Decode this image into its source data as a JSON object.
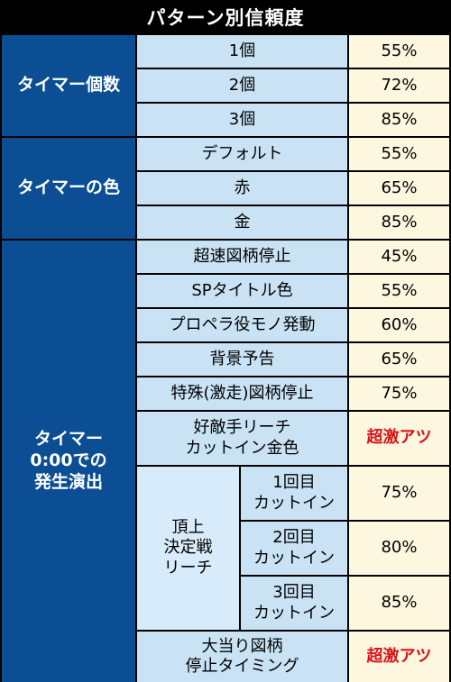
{
  "title": "パターン別信頼度",
  "colors": {
    "category_bg": "#0b4e93",
    "sub_bg": "#c9e3f5",
    "value_bg": "#fdf7df",
    "highlight_text": "#d8141a"
  },
  "sections": [
    {
      "category": "タイマー個数",
      "rows": [
        {
          "label": "1個",
          "value": "55%"
        },
        {
          "label": "2個",
          "value": "72%"
        },
        {
          "label": "3個",
          "value": "85%"
        }
      ]
    },
    {
      "category": "タイマーの色",
      "rows": [
        {
          "label": "デフォルト",
          "value": "55%"
        },
        {
          "label": "赤",
          "value": "65%"
        },
        {
          "label": "金",
          "value": "85%"
        }
      ]
    },
    {
      "category": "タイマー\n0:00での\n発生演出",
      "rows": [
        {
          "label": "超速図柄停止",
          "value": "45%"
        },
        {
          "label": "SPタイトル色",
          "value": "55%"
        },
        {
          "label": "プロペラ役モノ発動",
          "value": "60%"
        },
        {
          "label": "背景予告",
          "value": "65%"
        },
        {
          "label": "特殊(激走)図柄停止",
          "value": "75%"
        },
        {
          "label": "好敵手リーチ\nカットイン金色",
          "value": "超激アツ"
        }
      ],
      "subgroup": {
        "label": "頂上\n決定戦\nリーチ",
        "rows": [
          {
            "label": "1回目\nカットイン",
            "value": "75%"
          },
          {
            "label": "2回目\nカットイン",
            "value": "80%"
          },
          {
            "label": "3回目\nカットイン",
            "value": "85%"
          }
        ]
      },
      "last_row": {
        "label": "大当り図柄\n停止タイミング",
        "value": "超激アツ"
      }
    }
  ]
}
